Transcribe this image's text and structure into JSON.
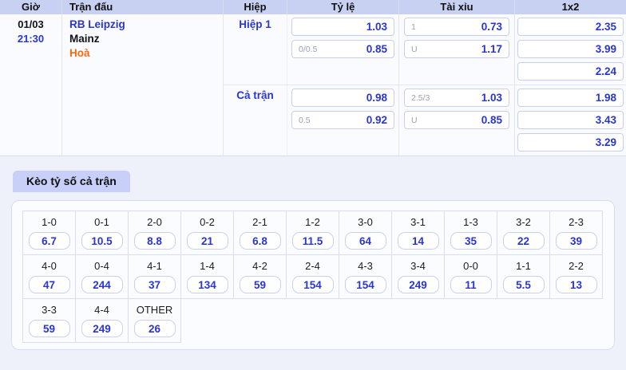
{
  "colors": {
    "accent_blue": "#2936d4",
    "draw_orange": "#f96a0e",
    "header_bg": "#c9d1f3",
    "tab_bg": "#c8cff8",
    "page_bg": "#eef1fa"
  },
  "table": {
    "headers": {
      "time": "Giờ",
      "match": "Trận đấu",
      "period": "Hiệp",
      "handicap": "Tỷ lệ",
      "total": "Tài xỉu",
      "one_x_two": "1x2"
    },
    "match": {
      "date": "01/03",
      "kickoff": "21:30",
      "home": "RB Leipzig",
      "away": "Mainz",
      "draw": "Hoà"
    },
    "periods": [
      {
        "label": "Hiệp 1",
        "handicap": [
          {
            "line": "",
            "odds": "1.03"
          },
          {
            "line": "0/0.5",
            "odds": "0.85"
          }
        ],
        "total": [
          {
            "line": "1",
            "odds": "0.73"
          },
          {
            "line": "U",
            "odds": "1.17"
          }
        ],
        "one_x_two": [
          "2.35",
          "3.99",
          "2.24"
        ]
      },
      {
        "label": "Cả trận",
        "handicap": [
          {
            "line": "",
            "odds": "0.98"
          },
          {
            "line": "0.5",
            "odds": "0.92"
          }
        ],
        "total": [
          {
            "line": "2.5/3",
            "odds": "1.03"
          },
          {
            "line": "U",
            "odds": "0.85"
          }
        ],
        "one_x_two": [
          "1.98",
          "3.43",
          "3.29"
        ]
      }
    ]
  },
  "score_section": {
    "tab_label": "Kèo tỷ số cả trận",
    "rows": [
      [
        {
          "score": "1-0",
          "odds": "6.7"
        },
        {
          "score": "0-1",
          "odds": "10.5"
        },
        {
          "score": "2-0",
          "odds": "8.8"
        },
        {
          "score": "0-2",
          "odds": "21"
        },
        {
          "score": "2-1",
          "odds": "6.8"
        },
        {
          "score": "1-2",
          "odds": "11.5"
        },
        {
          "score": "3-0",
          "odds": "64"
        },
        {
          "score": "3-1",
          "odds": "14"
        },
        {
          "score": "1-3",
          "odds": "35"
        },
        {
          "score": "3-2",
          "odds": "22"
        },
        {
          "score": "2-3",
          "odds": "39"
        }
      ],
      [
        {
          "score": "4-0",
          "odds": "47"
        },
        {
          "score": "0-4",
          "odds": "244"
        },
        {
          "score": "4-1",
          "odds": "37"
        },
        {
          "score": "1-4",
          "odds": "134"
        },
        {
          "score": "4-2",
          "odds": "59"
        },
        {
          "score": "2-4",
          "odds": "154"
        },
        {
          "score": "4-3",
          "odds": "154"
        },
        {
          "score": "3-4",
          "odds": "249"
        },
        {
          "score": "0-0",
          "odds": "11"
        },
        {
          "score": "1-1",
          "odds": "5.5"
        },
        {
          "score": "2-2",
          "odds": "13"
        }
      ],
      [
        {
          "score": "3-3",
          "odds": "59"
        },
        {
          "score": "4-4",
          "odds": "249"
        },
        {
          "score": "OTHER",
          "odds": "26"
        }
      ]
    ]
  }
}
